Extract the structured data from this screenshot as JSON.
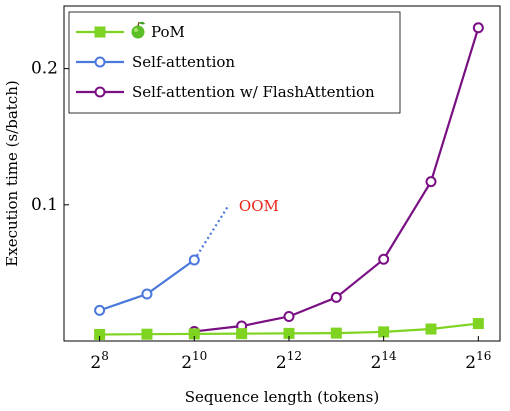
{
  "chart_data": {
    "type": "line",
    "xlabel": "Sequence length (tokens)",
    "ylabel": "Execution time (s/batch)",
    "x_scale": "log2",
    "x_ticks": [
      {
        "value": 256,
        "base": "2",
        "exp": "8"
      },
      {
        "value": 1024,
        "base": "2",
        "exp": "10"
      },
      {
        "value": 4096,
        "base": "2",
        "exp": "12"
      },
      {
        "value": 16384,
        "base": "2",
        "exp": "14"
      },
      {
        "value": 65536,
        "base": "2",
        "exp": "16"
      }
    ],
    "y_ticks": [
      {
        "value": 0.1,
        "label": "0.1"
      },
      {
        "value": 0.2,
        "label": "0.2"
      }
    ],
    "xlim": [
      152,
      90000
    ],
    "ylim": [
      0,
      0.246
    ],
    "grid": false,
    "legend_position": "top-left",
    "series": [
      {
        "name": "PoM",
        "icon": "green-apple",
        "color": "#7fd321",
        "marker": "square",
        "x": [
          256,
          512,
          1024,
          2048,
          4096,
          8192,
          16384,
          32768,
          65536
        ],
        "y": [
          0.0048,
          0.005,
          0.0052,
          0.0054,
          0.0056,
          0.0058,
          0.0067,
          0.0088,
          0.0128
        ]
      },
      {
        "name": "Self-attention",
        "color": "#4a78db",
        "marker": "circle",
        "x": [
          256,
          512,
          1024
        ],
        "y": [
          0.0225,
          0.0345,
          0.0595
        ]
      },
      {
        "name": "Self-attention w/ FlashAttention",
        "color": "#7a0f84",
        "marker": "circle",
        "x": [
          1024,
          2048,
          4096,
          8192,
          16384,
          32768,
          65536
        ],
        "y": [
          0.007,
          0.011,
          0.018,
          0.032,
          0.06,
          0.117,
          0.23
        ]
      }
    ],
    "annotations": [
      {
        "text": "OOM",
        "color": "#e8261b",
        "x": 1700,
        "y": 0.1
      }
    ],
    "oom_extension": {
      "series": "Self-attention",
      "from_x": 1024,
      "from_y": 0.0595,
      "to_x": 1700,
      "to_y": 0.1
    }
  }
}
